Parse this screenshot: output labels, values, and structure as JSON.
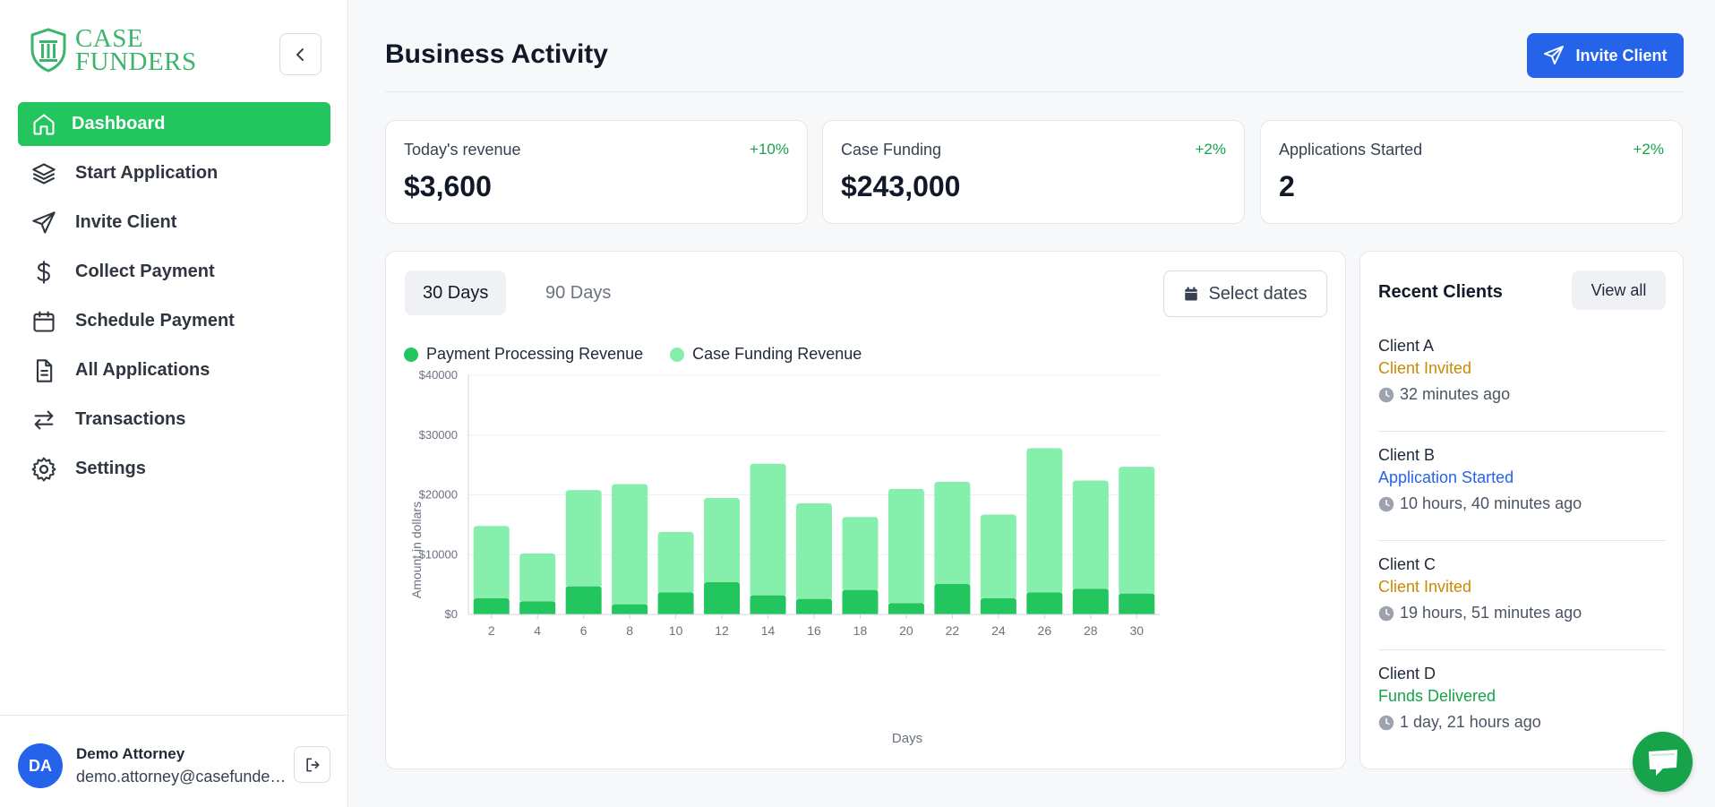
{
  "brand": {
    "line1": "CASE",
    "line2": "FUNDERS",
    "color": "#3bb56b"
  },
  "sidebar": {
    "items": [
      {
        "label": "Dashboard",
        "icon": "home-icon",
        "active": true
      },
      {
        "label": "Start Application",
        "icon": "layers-icon"
      },
      {
        "label": "Invite Client",
        "icon": "send-icon"
      },
      {
        "label": "Collect Payment",
        "icon": "dollar-icon"
      },
      {
        "label": "Schedule Payment",
        "icon": "calendar-icon"
      },
      {
        "label": "All Applications",
        "icon": "document-icon"
      },
      {
        "label": "Transactions",
        "icon": "arrows-exchange-icon"
      },
      {
        "label": "Settings",
        "icon": "gear-icon"
      }
    ]
  },
  "user": {
    "initials": "DA",
    "name": "Demo Attorney",
    "email": "demo.attorney@casefunders.com"
  },
  "header": {
    "title": "Business Activity",
    "invite_label": "Invite Client"
  },
  "stats": [
    {
      "label": "Today's revenue",
      "change": "+10%",
      "value": "$3,600"
    },
    {
      "label": "Case Funding",
      "change": "+2%",
      "value": "$243,000"
    },
    {
      "label": "Applications Started",
      "change": "+2%",
      "value": "2"
    }
  ],
  "chart_panel": {
    "tabs": [
      "30 Days",
      "90 Days"
    ],
    "active_tab": "30 Days",
    "date_button": "Select dates"
  },
  "chart_data": {
    "type": "bar",
    "stacked": true,
    "categories": [
      "2",
      "4",
      "6",
      "8",
      "10",
      "12",
      "14",
      "16",
      "18",
      "20",
      "22",
      "24",
      "26",
      "28",
      "30"
    ],
    "series": [
      {
        "name": "Payment Processing Revenue",
        "color": "#22c55e",
        "values": [
          2700,
          2200,
          4700,
          1700,
          3700,
          5400,
          3200,
          2600,
          4100,
          1900,
          5100,
          2700,
          3700,
          4300,
          3500
        ]
      },
      {
        "name": "Case Funding Revenue",
        "color": "#86efac",
        "values": [
          12100,
          8000,
          16100,
          20100,
          10100,
          14100,
          22000,
          16000,
          12200,
          19100,
          17100,
          14000,
          24100,
          18100,
          21200
        ]
      }
    ],
    "xlabel": "Days",
    "ylabel": "Amount in dollars",
    "ylim": [
      0,
      40000
    ],
    "yticks": [
      0,
      10000,
      20000,
      30000,
      40000
    ],
    "ytick_labels": [
      "$0",
      "$10000",
      "$20000",
      "$30000",
      "$40000"
    ],
    "grid": true,
    "legend": "top-left"
  },
  "recent_clients": {
    "title": "Recent Clients",
    "view_all": "View all",
    "items": [
      {
        "name": "Client A",
        "status": "Client Invited",
        "status_color": "#ca8a04",
        "time": "32 minutes ago"
      },
      {
        "name": "Client B",
        "status": "Application Started",
        "status_color": "#2563eb",
        "time": "10 hours, 40 minutes ago"
      },
      {
        "name": "Client C",
        "status": "Client Invited",
        "status_color": "#ca8a04",
        "time": "19 hours, 51 minutes ago"
      },
      {
        "name": "Client D",
        "status": "Funds Delivered",
        "status_color": "#16a34a",
        "time": "1 day, 21 hours ago"
      }
    ]
  }
}
